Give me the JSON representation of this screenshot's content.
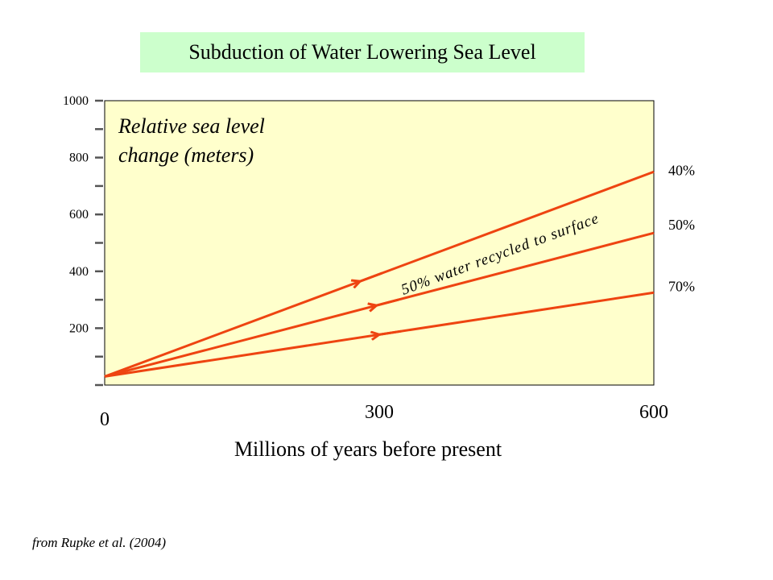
{
  "title": "Subduction of Water Lowering Sea Level",
  "source_note": "from Rupke et al. (2004)",
  "colors": {
    "plot_bg": "#ffffcc",
    "title_bg": "#ccffcc",
    "line": "#ee4411"
  },
  "chart_data": {
    "type": "line",
    "title": "Subduction of Water Lowering Sea Level",
    "xlabel": "Millions of years before present",
    "ylabel": "Relative sea level change (meters)",
    "xlim": [
      0,
      600
    ],
    "ylim": [
      0,
      1000
    ],
    "x_ticks": [
      0,
      300,
      600
    ],
    "y_ticks": [
      200,
      400,
      600,
      800,
      1000
    ],
    "grid": false,
    "annotation": "50% water recycled to surface",
    "series": [
      {
        "name": "40%",
        "x": [
          0,
          600
        ],
        "y": [
          30,
          750
        ]
      },
      {
        "name": "50%",
        "x": [
          0,
          600
        ],
        "y": [
          30,
          535
        ]
      },
      {
        "name": "70%",
        "x": [
          0,
          600
        ],
        "y": [
          30,
          325
        ]
      }
    ]
  }
}
